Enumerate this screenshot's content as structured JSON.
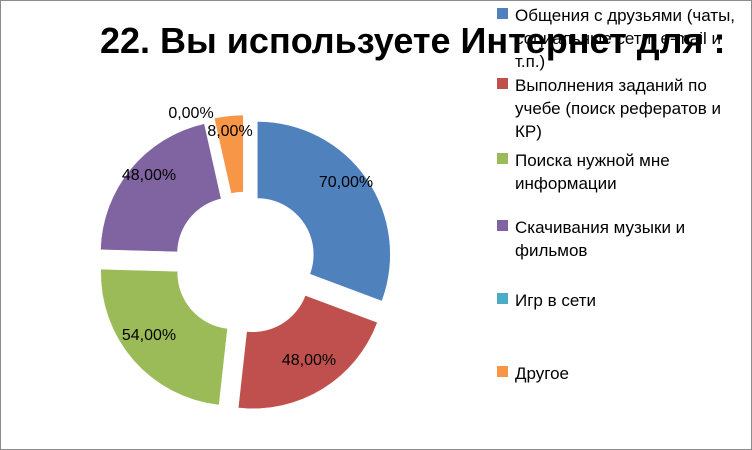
{
  "chart_data": {
    "type": "pie",
    "variant": "exploded-doughnut",
    "title": "22. Вы используете Интернет для :",
    "categories": [
      "Общения с друзьями (чаты, социальные сети, e-mail и т.п.)",
      "Выполнения заданий по учебе (поиск рефератов и КР)",
      "Поиска нужной мне информации",
      "Скачивания музыки и фильмов",
      "Игр в сети",
      "Другое"
    ],
    "values": [
      70,
      48,
      54,
      48,
      0,
      8
    ],
    "value_labels": [
      "70,00%",
      "48,00%",
      "54,00%",
      "48,00%",
      "0,00%",
      "8,00%"
    ],
    "colors": [
      "#4f81bd",
      "#c0504d",
      "#9bbb59",
      "#8064a2",
      "#4bacc6",
      "#f79646"
    ],
    "legend_position": "right",
    "unit": "%"
  }
}
